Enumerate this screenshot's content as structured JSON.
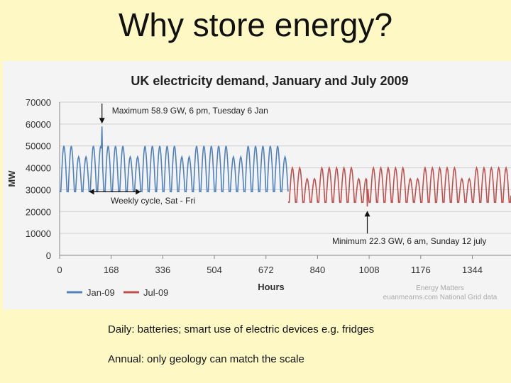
{
  "slide": {
    "title": "Why store energy?",
    "bullets": [
      "Daily: batteries; smart use of electric devices e.g. fridges",
      "Annual: only geology can match the scale"
    ]
  },
  "colors": {
    "background": "#fdf8c4",
    "jan": "#4f81bd",
    "jul": "#c0504d"
  },
  "chart_data": {
    "type": "line",
    "title": "UK electricity demand, January and July 2009",
    "xlabel": "Hours",
    "ylabel": "MW",
    "xlim": [
      0,
      1470
    ],
    "ylim": [
      0,
      70000
    ],
    "xticks": [
      0,
      168,
      336,
      504,
      672,
      840,
      1008,
      1176,
      1344
    ],
    "yticks": [
      0,
      10000,
      20000,
      30000,
      40000,
      50000,
      60000,
      70000
    ],
    "grid": true,
    "legend_position": "bottom-left",
    "series": [
      {
        "name": "Jan-09",
        "color": "#4f81bd",
        "x_start": 0,
        "x_end": 744,
        "profile": {
          "daily_min_mw": 30000,
          "weekday_peak_mw": 50000,
          "weekend_peak_mw": 45000,
          "max_peak_mw": 58900
        }
      },
      {
        "name": "Jul-09",
        "color": "#c0504d",
        "x_start": 744,
        "x_end": 1470,
        "profile": {
          "daily_min_mw": 25000,
          "weekday_peak_mw": 40000,
          "weekend_peak_mw": 35000,
          "min_trough_mw": 22300
        }
      }
    ],
    "annotations": [
      {
        "text": "Maximum 58.9 GW, 6 pm, Tuesday 6 Jan",
        "x": 138,
        "y": 58900,
        "arrow": "down"
      },
      {
        "text": "Weekly cycle, Sat - Fri",
        "x_from": 96,
        "x_to": 264,
        "y": 31000,
        "arrow": "both"
      },
      {
        "text": "Minimum 22.3 GW, 6 am, Sunday 12 july",
        "x": 1002,
        "y": 22300,
        "arrow": "up"
      }
    ],
    "source": [
      "Energy Matters",
      "euanmearns.com National Grid data"
    ]
  }
}
